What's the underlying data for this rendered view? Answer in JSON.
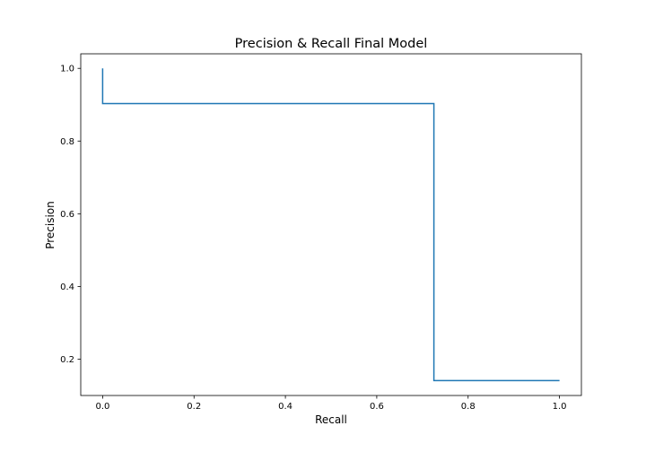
{
  "chart_data": {
    "type": "line",
    "title": "Precision & Recall Final Model",
    "xlabel": "Recall",
    "ylabel": "Precision",
    "xlim": [
      -0.048,
      1.048
    ],
    "ylim": [
      0.1,
      1.04
    ],
    "xticks": [
      0.0,
      0.2,
      0.4,
      0.6,
      0.8,
      1.0
    ],
    "xtick_labels": [
      "0.0",
      "0.2",
      "0.4",
      "0.6",
      "0.8",
      "1.0"
    ],
    "yticks": [
      0.2,
      0.4,
      0.6,
      0.8,
      1.0
    ],
    "ytick_labels": [
      "0.2",
      "0.4",
      "0.6",
      "0.8",
      "1.0"
    ],
    "grid": false,
    "series": [
      {
        "color": "#1f77b4",
        "step": true,
        "x": [
          0.0,
          0.0,
          0.725,
          0.725,
          1.0
        ],
        "y": [
          1.0,
          0.903,
          0.903,
          0.141,
          0.141
        ]
      }
    ]
  }
}
